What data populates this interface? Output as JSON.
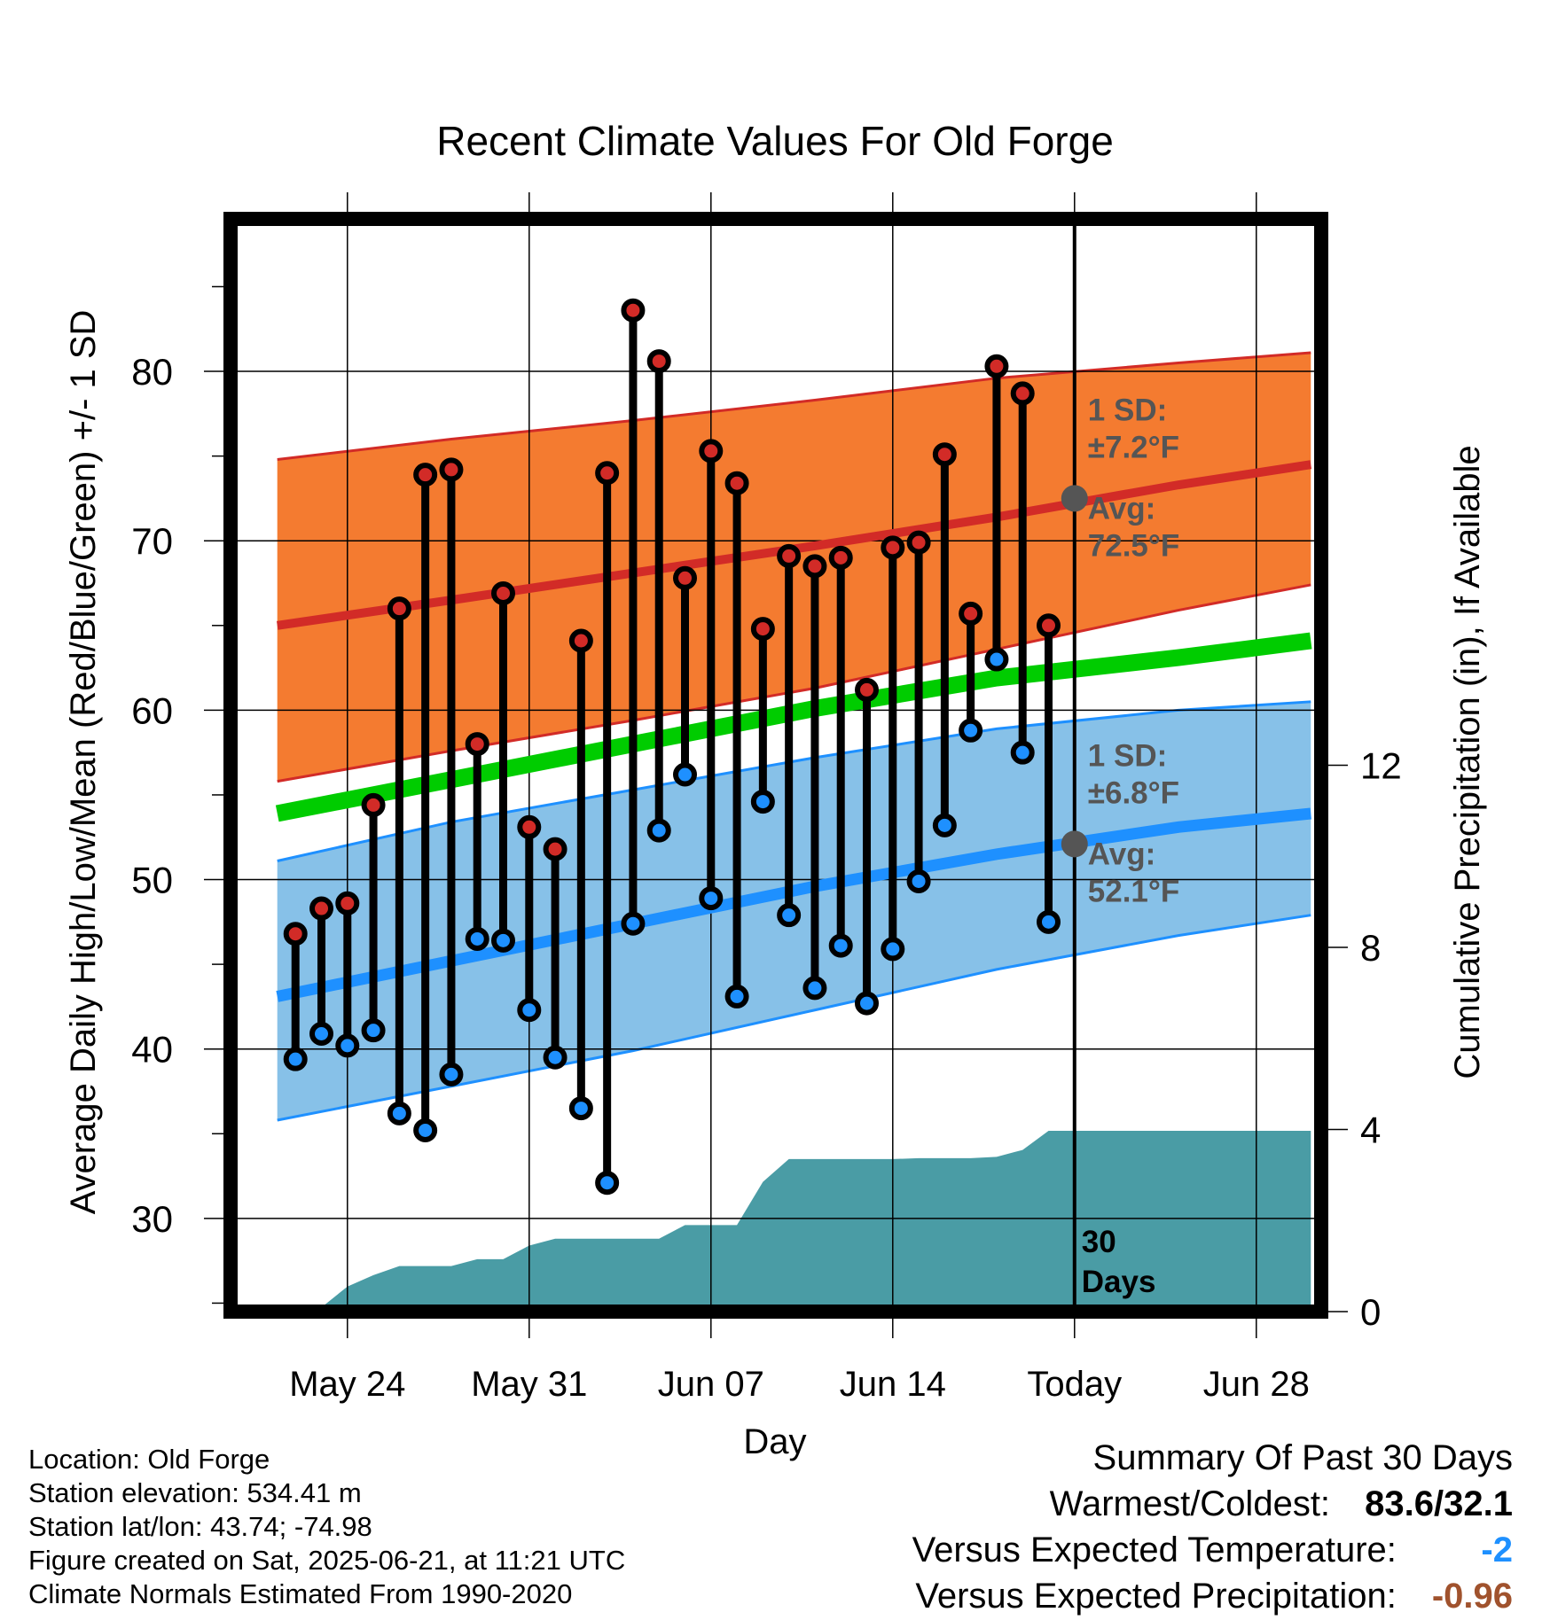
{
  "chart_data": {
    "type": "line",
    "title": "Recent Climate Values For Old Forge",
    "xlabel": "Day",
    "ylabel": "Average Daily High/Low/Mean (Red/Blue/Green) +/- 1 SD",
    "y2label": "Cumulative Precipitation (in), If Available",
    "ylim": [
      24.5,
      89
    ],
    "y2lim": [
      0,
      24.0
    ],
    "xlim": [
      -4.5,
      37.5
    ],
    "yticks": [
      "30",
      "40",
      "50",
      "60",
      "70",
      "80"
    ],
    "y2ticks": [
      "0",
      "4",
      "8",
      "12"
    ],
    "xticks": [
      {
        "day": 0,
        "label": "May 24"
      },
      {
        "day": 7,
        "label": "May 31"
      },
      {
        "day": 14,
        "label": "Jun 07"
      },
      {
        "day": 21,
        "label": "Jun 14"
      },
      {
        "day": 28,
        "label": "Today"
      },
      {
        "day": 35,
        "label": "Jun 28"
      }
    ],
    "grid": true,
    "today_day": 28,
    "today_label": "30 Days",
    "days": [
      -2,
      -1,
      0,
      1,
      2,
      3,
      4,
      5,
      6,
      7,
      8,
      9,
      10,
      11,
      12,
      13,
      14,
      15,
      16,
      17,
      18,
      19,
      20,
      21,
      22,
      23,
      24,
      25,
      26,
      27
    ],
    "highs": [
      46.8,
      48.3,
      48.6,
      54.4,
      66.0,
      73.9,
      74.2,
      58.0,
      66.9,
      53.1,
      51.8,
      64.1,
      74.0,
      83.6,
      80.6,
      67.8,
      75.3,
      73.4,
      64.8,
      69.1,
      68.5,
      69.0,
      61.2,
      69.6,
      69.9,
      75.1,
      65.7,
      80.3,
      78.7,
      65.0
    ],
    "lows": [
      39.4,
      40.9,
      40.2,
      41.1,
      36.2,
      35.2,
      38.5,
      46.5,
      46.4,
      42.3,
      39.5,
      36.5,
      32.1,
      47.4,
      52.9,
      56.2,
      48.9,
      43.1,
      54.6,
      47.9,
      43.6,
      46.1,
      42.7,
      45.9,
      49.9,
      53.2,
      58.8,
      63.0,
      57.5,
      47.5
    ],
    "normal_high": {
      "days": [
        -2.7,
        4,
        11,
        18,
        25,
        32,
        37.1
      ],
      "avg": [
        65.0,
        66.5,
        68.1,
        69.7,
        71.4,
        73.3,
        74.5
      ],
      "upper": [
        74.8,
        76.0,
        77.1,
        78.3,
        79.6,
        80.5,
        81.1
      ],
      "lower": [
        55.8,
        57.6,
        59.4,
        61.3,
        63.6,
        65.9,
        67.4
      ],
      "sd_label": "1 SD:",
      "sd_value": "±7.2°F",
      "avg_label": "Avg:",
      "avg_value": "72.5°F",
      "today_avg": 72.5,
      "color": "#d22b27",
      "band_color": "#f47b30"
    },
    "normal_mean": {
      "days": [
        -2.7,
        4,
        11,
        18,
        25,
        32,
        37.1
      ],
      "avg": [
        53.9,
        55.9,
        58.0,
        60.1,
        61.9,
        63.1,
        64.1
      ],
      "color": "#00cc00"
    },
    "normal_low": {
      "days": [
        -2.7,
        4,
        11,
        18,
        25,
        32,
        37.1
      ],
      "avg": [
        43.1,
        45.2,
        47.4,
        49.6,
        51.5,
        53.1,
        53.9
      ],
      "upper": [
        51.1,
        53.4,
        55.3,
        57.2,
        58.9,
        60.0,
        60.5
      ],
      "lower": [
        35.8,
        37.8,
        39.9,
        42.3,
        44.7,
        46.7,
        47.9
      ],
      "sd_label": "1 SD:",
      "sd_value": "±6.8°F",
      "avg_label": "Avg:",
      "avg_value": "52.1°F",
      "today_avg": 52.1,
      "color": "#1e90ff",
      "band_color": "#87c1e8"
    },
    "precip": {
      "days": [
        -2.7,
        -1.2,
        0,
        1,
        2,
        3,
        4,
        5,
        6,
        7,
        8,
        9,
        10,
        11,
        12,
        13,
        14,
        15,
        16,
        17,
        18,
        19,
        20,
        21,
        22,
        23,
        24,
        25,
        26,
        27,
        28,
        37.1
      ],
      "values": [
        0,
        0,
        0.55,
        0.8,
        1.0,
        1.0,
        1.0,
        1.15,
        1.15,
        1.45,
        1.6,
        1.6,
        1.6,
        1.6,
        1.6,
        1.9,
        1.9,
        1.9,
        2.85,
        3.35,
        3.35,
        3.35,
        3.35,
        3.35,
        3.37,
        3.37,
        3.37,
        3.4,
        3.55,
        3.97,
        3.97,
        3.97
      ],
      "color": "#4a9ca5"
    },
    "colors": {
      "high_marker": "#d22b27",
      "low_marker": "#1e90ff",
      "stick": "#000000",
      "today_dot": "#555555"
    }
  },
  "station_info": [
    "Location: Old Forge",
    "Station elevation: 534.41 m",
    "Station lat/lon: 43.74; -74.98",
    "Figure created on Sat, 2025-06-21, at 11:21 UTC",
    "Climate Normals Estimated From 1990-2020"
  ],
  "summary": {
    "title": "Summary Of Past 30 Days",
    "warmest_coldest_label": "Warmest/Coldest:",
    "warmest_coldest_value": "83.6/32.1",
    "temp_label": "Versus Expected Temperature:",
    "temp_value": "-2",
    "temp_color": "#1e90ff",
    "precip_label": "Versus Expected Precipitation:",
    "precip_value": "-0.96",
    "precip_color": "#a0522d"
  }
}
